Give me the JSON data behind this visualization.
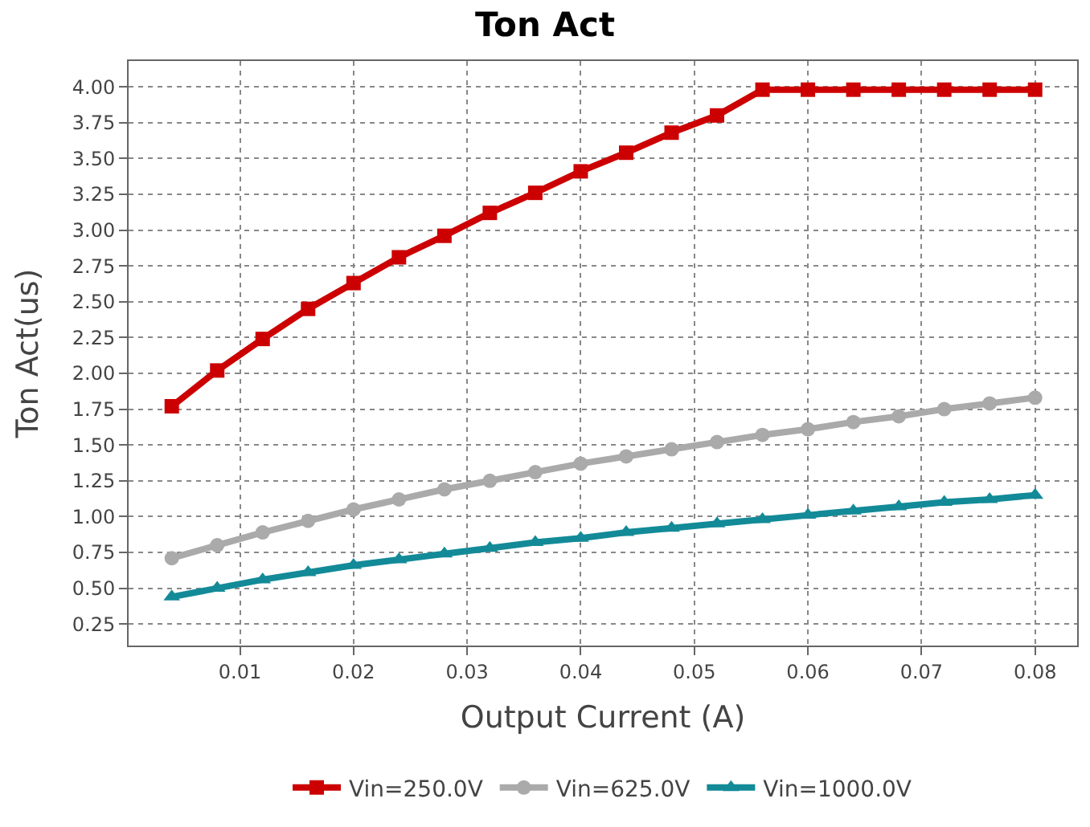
{
  "chart_data": {
    "type": "line",
    "title": "Ton Act",
    "xlabel": "Output Current (A)",
    "ylabel": "Ton Act(us)",
    "x": [
      0.004,
      0.008,
      0.012,
      0.016,
      0.02,
      0.024,
      0.028,
      0.032,
      0.036,
      0.04,
      0.044,
      0.048,
      0.052,
      0.056,
      0.06,
      0.064,
      0.068,
      0.072,
      0.076,
      0.08
    ],
    "series": [
      {
        "name": "Vin=250.0V",
        "color": "#cc0000",
        "marker": "square",
        "values": [
          1.77,
          2.02,
          2.24,
          2.45,
          2.63,
          2.81,
          2.96,
          3.12,
          3.26,
          3.41,
          3.54,
          3.68,
          3.8,
          3.98,
          3.98,
          3.98,
          3.98,
          3.98,
          3.98,
          3.98
        ]
      },
      {
        "name": "Vin=625.0V",
        "color": "#aaaaaa",
        "marker": "circle",
        "values": [
          0.71,
          0.8,
          0.89,
          0.97,
          1.05,
          1.12,
          1.19,
          1.25,
          1.31,
          1.37,
          1.42,
          1.47,
          1.52,
          1.57,
          1.61,
          1.66,
          1.7,
          1.75,
          1.79,
          1.83
        ]
      },
      {
        "name": "Vin=1000.0V",
        "color": "#138a98",
        "marker": "triangle",
        "values": [
          0.44,
          0.5,
          0.56,
          0.61,
          0.66,
          0.7,
          0.74,
          0.78,
          0.82,
          0.85,
          0.89,
          0.92,
          0.95,
          0.98,
          1.01,
          1.04,
          1.07,
          1.1,
          1.12,
          1.15
        ]
      }
    ],
    "xlim": [
      0.0002,
      0.0837
    ],
    "ylim": [
      0.1,
      4.18
    ],
    "xticks": [
      0.01,
      0.02,
      0.03,
      0.04,
      0.05,
      0.06,
      0.07,
      0.08
    ],
    "yticks": [
      {
        "value": 0.25,
        "label": "0.25"
      },
      {
        "value": 0.5,
        "label": "0.50"
      },
      {
        "value": 0.75,
        "label": "0.75"
      },
      {
        "value": 1.0,
        "label": "1.00"
      },
      {
        "value": 1.25,
        "label": "1.25"
      },
      {
        "value": 1.5,
        "label": "1.50"
      },
      {
        "value": 1.75,
        "label": "1.75"
      },
      {
        "value": 2.0,
        "label": "2.00"
      },
      {
        "value": 2.25,
        "label": "2.25"
      },
      {
        "value": 2.5,
        "label": "2.50"
      },
      {
        "value": 2.75,
        "label": "2.75"
      },
      {
        "value": 3.0,
        "label": "3.00"
      },
      {
        "value": 3.25,
        "label": "3.25"
      },
      {
        "value": 3.5,
        "label": "3.50"
      },
      {
        "value": 3.75,
        "label": "3.75"
      },
      {
        "value": 4.0,
        "label": "4.00"
      }
    ],
    "grid": true,
    "legend": "bottom",
    "line_style": "solid"
  }
}
